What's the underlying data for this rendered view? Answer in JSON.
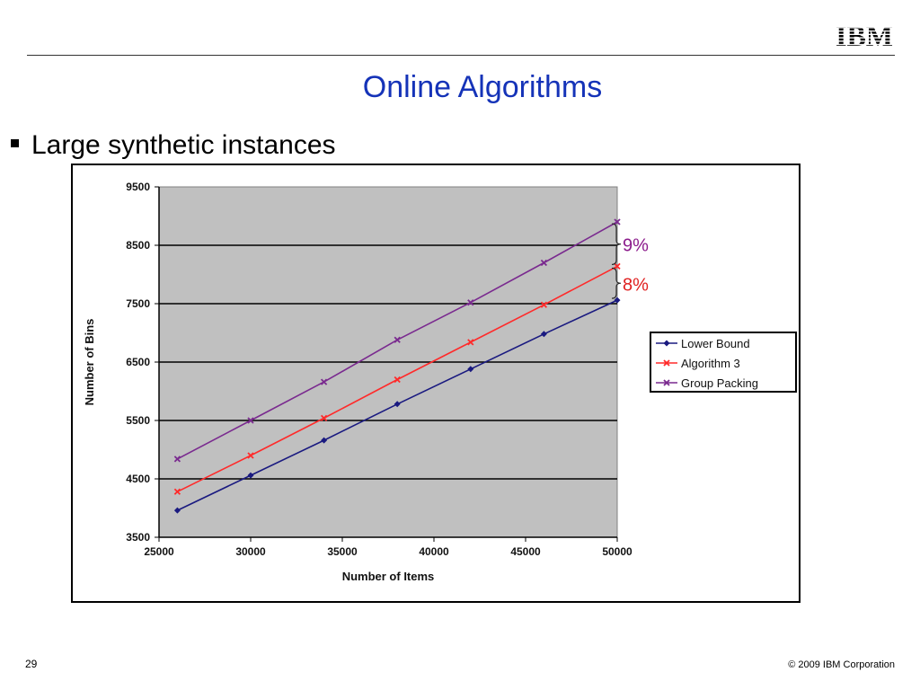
{
  "header": {
    "logo_text": "IBM",
    "title": "Online Algorithms"
  },
  "bullets": [
    {
      "text": "Large synthetic instances"
    }
  ],
  "colors": {
    "title": "#1533b8",
    "plot_background": "#c0c0c0",
    "lower_bound": "#1a1a80",
    "algorithm3": "#ff2a2a",
    "group_packing": "#7a2a8f",
    "annotation_9": "#8b1a8b",
    "annotation_8": "#e02020"
  },
  "chart_data": {
    "type": "line",
    "xlabel": "Number of Items",
    "ylabel": "Number of Bins",
    "xlim": [
      25000,
      50000
    ],
    "ylim": [
      3500,
      9500
    ],
    "xticks": [
      25000,
      30000,
      35000,
      40000,
      45000,
      50000
    ],
    "yticks": [
      3500,
      4500,
      5500,
      6500,
      7500,
      8500,
      9500
    ],
    "grid": "horizontal",
    "legend_position": "right",
    "x": [
      26000,
      30000,
      34000,
      38000,
      42000,
      46000,
      50000
    ],
    "series": [
      {
        "name": "Lower Bound",
        "marker": "diamond",
        "color_key": "lower_bound",
        "values": [
          3960,
          4560,
          5160,
          5780,
          6380,
          6980,
          7560
        ]
      },
      {
        "name": "Algorithm 3",
        "marker": "x",
        "color_key": "algorithm3",
        "values": [
          4280,
          4900,
          5540,
          6200,
          6840,
          7480,
          8140
        ]
      },
      {
        "name": "Group Packing",
        "marker": "x",
        "color_key": "group_packing",
        "values": [
          4840,
          5500,
          6160,
          6880,
          7520,
          8200,
          8900
        ]
      }
    ],
    "annotations": [
      {
        "text": "9%",
        "between": [
          "Algorithm 3",
          "Group Packing"
        ],
        "color_key": "annotation_9"
      },
      {
        "text": "8%",
        "between": [
          "Lower Bound",
          "Algorithm 3"
        ],
        "color_key": "annotation_8"
      }
    ]
  },
  "footer": {
    "page_number": "29",
    "copyright": "© 2009 IBM Corporation"
  }
}
